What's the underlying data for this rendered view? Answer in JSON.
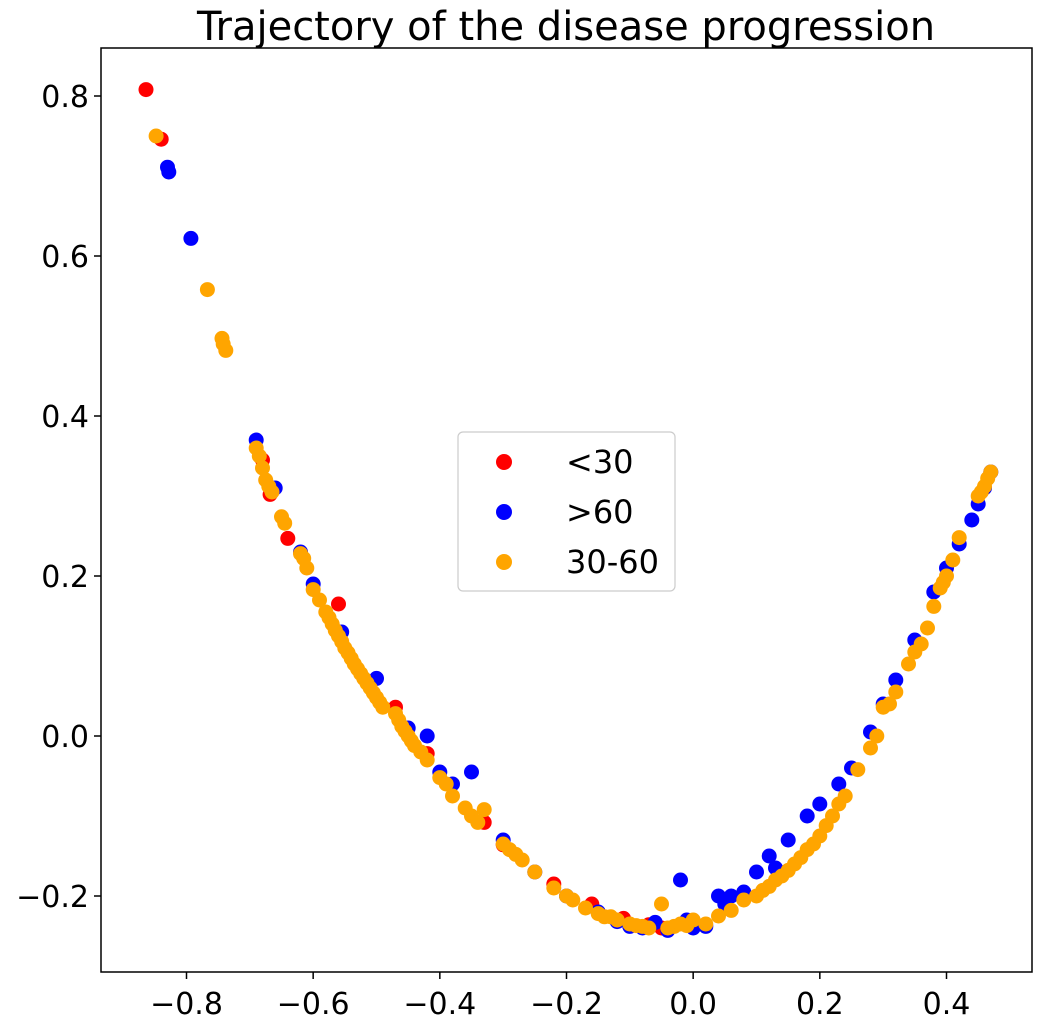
{
  "chart_data": {
    "type": "scatter",
    "title": "Trajectory of the disease progression",
    "xlabel": "",
    "ylabel": "",
    "xlim": [
      -0.935,
      0.535
    ],
    "ylim": [
      -0.295,
      0.86
    ],
    "xticks": [
      -0.8,
      -0.6,
      -0.4,
      -0.2,
      0.0,
      0.2,
      0.4
    ],
    "xtick_labels": [
      "−0.8",
      "−0.6",
      "−0.4",
      "−0.2",
      "0.0",
      "0.2",
      "0.4"
    ],
    "yticks": [
      -0.2,
      0.0,
      0.2,
      0.4,
      0.6,
      0.8
    ],
    "ytick_labels": [
      "−0.2",
      "0.0",
      "0.2",
      "0.4",
      "0.6",
      "0.8"
    ],
    "grid": false,
    "legend_position": "center",
    "series": [
      {
        "name": "<30",
        "color": "#ff0000",
        "x": [
          -0.864,
          -0.84,
          -0.68,
          -0.668,
          -0.64,
          -0.56,
          -0.47,
          -0.42,
          -0.33,
          -0.3,
          -0.22,
          -0.16,
          -0.11,
          -0.07,
          -0.05
        ],
        "y": [
          0.808,
          0.746,
          0.345,
          0.302,
          0.247,
          0.165,
          0.036,
          -0.022,
          -0.108,
          -0.136,
          -0.185,
          -0.21,
          -0.228,
          -0.236,
          -0.24
        ]
      },
      {
        "name": ">60",
        "color": "#0000ff",
        "x": [
          -0.83,
          -0.828,
          -0.793,
          -0.69,
          -0.66,
          -0.62,
          -0.6,
          -0.555,
          -0.5,
          -0.45,
          -0.42,
          -0.4,
          -0.38,
          -0.35,
          -0.3,
          -0.25,
          -0.2,
          -0.15,
          -0.12,
          -0.1,
          -0.08,
          -0.06,
          -0.04,
          -0.02,
          -0.01,
          0.0,
          0.02,
          0.04,
          0.05,
          0.06,
          0.08,
          0.1,
          0.12,
          0.13,
          0.15,
          0.18,
          0.2,
          0.23,
          0.25,
          0.28,
          0.3,
          0.32,
          0.35,
          0.38,
          0.4,
          0.42,
          0.44,
          0.45,
          0.46,
          0.47
        ],
        "y": [
          0.711,
          0.705,
          0.622,
          0.37,
          0.31,
          0.23,
          0.19,
          0.13,
          0.072,
          0.01,
          0.0,
          -0.045,
          -0.06,
          -0.045,
          -0.13,
          -0.17,
          -0.2,
          -0.22,
          -0.232,
          -0.238,
          -0.24,
          -0.233,
          -0.243,
          -0.18,
          -0.23,
          -0.24,
          -0.238,
          -0.2,
          -0.21,
          -0.2,
          -0.195,
          -0.17,
          -0.15,
          -0.165,
          -0.13,
          -0.1,
          -0.085,
          -0.06,
          -0.04,
          0.005,
          0.04,
          0.07,
          0.12,
          0.18,
          0.21,
          0.24,
          0.27,
          0.29,
          0.31,
          0.33
        ]
      },
      {
        "name": "30-60",
        "color": "#ffa500",
        "x": [
          -0.848,
          -0.767,
          -0.744,
          -0.742,
          -0.738,
          -0.69,
          -0.685,
          -0.68,
          -0.675,
          -0.67,
          -0.665,
          -0.65,
          -0.645,
          -0.62,
          -0.615,
          -0.61,
          -0.6,
          -0.59,
          -0.58,
          -0.575,
          -0.57,
          -0.565,
          -0.56,
          -0.555,
          -0.55,
          -0.545,
          -0.54,
          -0.535,
          -0.53,
          -0.525,
          -0.52,
          -0.515,
          -0.51,
          -0.505,
          -0.5,
          -0.495,
          -0.49,
          -0.47,
          -0.465,
          -0.46,
          -0.455,
          -0.45,
          -0.445,
          -0.44,
          -0.43,
          -0.42,
          -0.4,
          -0.39,
          -0.38,
          -0.36,
          -0.35,
          -0.34,
          -0.33,
          -0.3,
          -0.29,
          -0.28,
          -0.27,
          -0.25,
          -0.22,
          -0.2,
          -0.19,
          -0.17,
          -0.15,
          -0.14,
          -0.13,
          -0.12,
          -0.1,
          -0.09,
          -0.08,
          -0.07,
          -0.05,
          -0.04,
          -0.03,
          -0.02,
          -0.01,
          0.0,
          0.02,
          0.04,
          0.06,
          0.08,
          0.1,
          0.11,
          0.12,
          0.13,
          0.14,
          0.15,
          0.16,
          0.17,
          0.18,
          0.19,
          0.2,
          0.21,
          0.22,
          0.23,
          0.24,
          0.26,
          0.28,
          0.29,
          0.3,
          0.31,
          0.32,
          0.34,
          0.35,
          0.36,
          0.37,
          0.38,
          0.39,
          0.395,
          0.4,
          0.41,
          0.42,
          0.45,
          0.455,
          0.46,
          0.465,
          0.47
        ],
        "y": [
          0.75,
          0.558,
          0.497,
          0.49,
          0.482,
          0.36,
          0.35,
          0.335,
          0.32,
          0.312,
          0.305,
          0.274,
          0.266,
          0.228,
          0.222,
          0.21,
          0.183,
          0.17,
          0.155,
          0.148,
          0.14,
          0.132,
          0.125,
          0.118,
          0.11,
          0.104,
          0.097,
          0.09,
          0.084,
          0.078,
          0.072,
          0.066,
          0.06,
          0.054,
          0.048,
          0.042,
          0.036,
          0.028,
          0.02,
          0.012,
          0.006,
          0.0,
          -0.006,
          -0.012,
          -0.02,
          -0.03,
          -0.052,
          -0.06,
          -0.075,
          -0.09,
          -0.1,
          -0.108,
          -0.092,
          -0.135,
          -0.142,
          -0.148,
          -0.155,
          -0.17,
          -0.19,
          -0.2,
          -0.205,
          -0.215,
          -0.222,
          -0.226,
          -0.226,
          -0.23,
          -0.235,
          -0.237,
          -0.238,
          -0.24,
          -0.21,
          -0.24,
          -0.238,
          -0.235,
          -0.237,
          -0.23,
          -0.235,
          -0.225,
          -0.218,
          -0.205,
          -0.2,
          -0.193,
          -0.188,
          -0.18,
          -0.175,
          -0.168,
          -0.16,
          -0.152,
          -0.142,
          -0.135,
          -0.125,
          -0.112,
          -0.1,
          -0.085,
          -0.075,
          -0.042,
          -0.015,
          0.0,
          0.036,
          0.04,
          0.055,
          0.09,
          0.105,
          0.115,
          0.135,
          0.162,
          0.185,
          0.192,
          0.2,
          0.22,
          0.248,
          0.3,
          0.305,
          0.312,
          0.322,
          0.33
        ]
      }
    ]
  }
}
